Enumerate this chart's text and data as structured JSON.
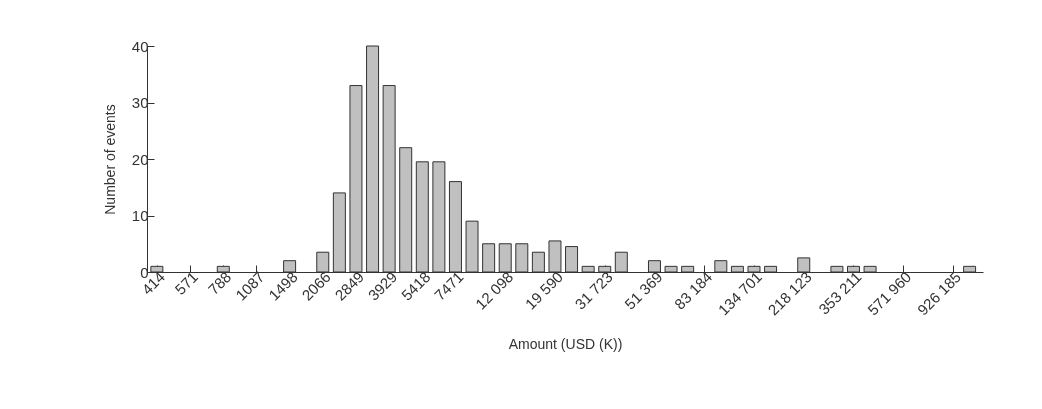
{
  "chart_data": {
    "type": "bar",
    "xlabel": "Amount (USD (K))",
    "ylabel": "Number of events",
    "x": [
      414,
      788,
      1498,
      2066,
      2426,
      2849,
      3346,
      3929,
      4614,
      5418,
      6362,
      7471,
      8773,
      10302,
      12098,
      14207,
      16683,
      19590,
      23005,
      27015,
      31723,
      37252,
      51369,
      60322,
      70836,
      97683,
      114708,
      134701,
      158178,
      218123,
      300785,
      353211,
      414774,
      1087620
    ],
    "values": [
      1,
      1,
      2,
      3.5,
      14,
      33,
      40,
      33,
      22,
      19.5,
      19.5,
      16,
      9,
      5,
      5,
      5,
      3.5,
      5.5,
      4.5,
      1,
      1,
      3.5,
      2,
      1,
      1,
      2,
      1,
      1,
      1,
      2.5,
      1,
      1,
      1,
      1
    ],
    "color": "#c0c0c0",
    "log": "x",
    "grid": false,
    "xlim": [
      395,
      1180000
    ],
    "xticks": [
      414,
      571,
      788,
      1087,
      1498,
      2066,
      2849,
      3929,
      5418,
      7471,
      {
        "value": 12098,
        "label": "12 098"
      },
      {
        "value": 19590,
        "label": "19 590"
      },
      {
        "value": 31723,
        "label": "31 723"
      },
      {
        "value": 51369,
        "label": "51 369"
      },
      {
        "value": 83184,
        "label": "83 184"
      },
      {
        "value": 134701,
        "label": "134 701"
      },
      {
        "value": 218123,
        "label": "218 123"
      },
      {
        "value": 353211,
        "label": "353 211"
      },
      {
        "value": 571960,
        "label": "571 960"
      },
      {
        "value": 926185,
        "label": "926 185"
      }
    ],
    "ylim": [
      0,
      40
    ],
    "yticks": [
      0,
      10,
      20,
      30,
      40
    ]
  }
}
